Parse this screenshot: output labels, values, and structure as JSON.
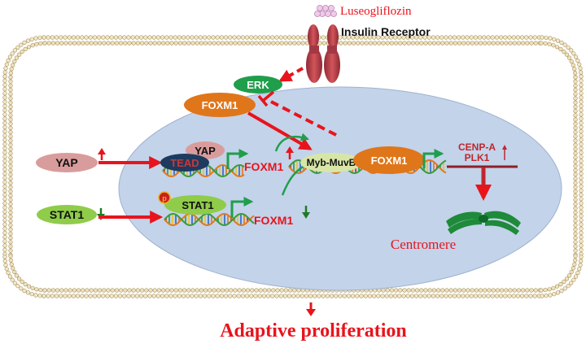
{
  "drug": "Luseogliflozin",
  "receptor": "Insulin Receptor",
  "erk": "ERK",
  "foxm1": "FOXM1",
  "yap": "YAP",
  "tead": "TEAD",
  "stat1": "STAT1",
  "phospho": "p",
  "myb_muvb": "Myb-MuvB",
  "cenp_a": "CENP-A",
  "plk1": "PLK1",
  "centromere": "Centromere",
  "outcome": "Adaptive proliferation",
  "colors": {
    "red": "#e8141c",
    "dark_red": "#c0262c",
    "green": "#1f9e4b",
    "dark_green": "#1e7a26",
    "orange": "#e0761a",
    "nucleus": "#c3d3ea",
    "yap_pink": "#d99c9c",
    "lime": "#8fcc4a",
    "tead_navy": "#1f3a5f"
  }
}
